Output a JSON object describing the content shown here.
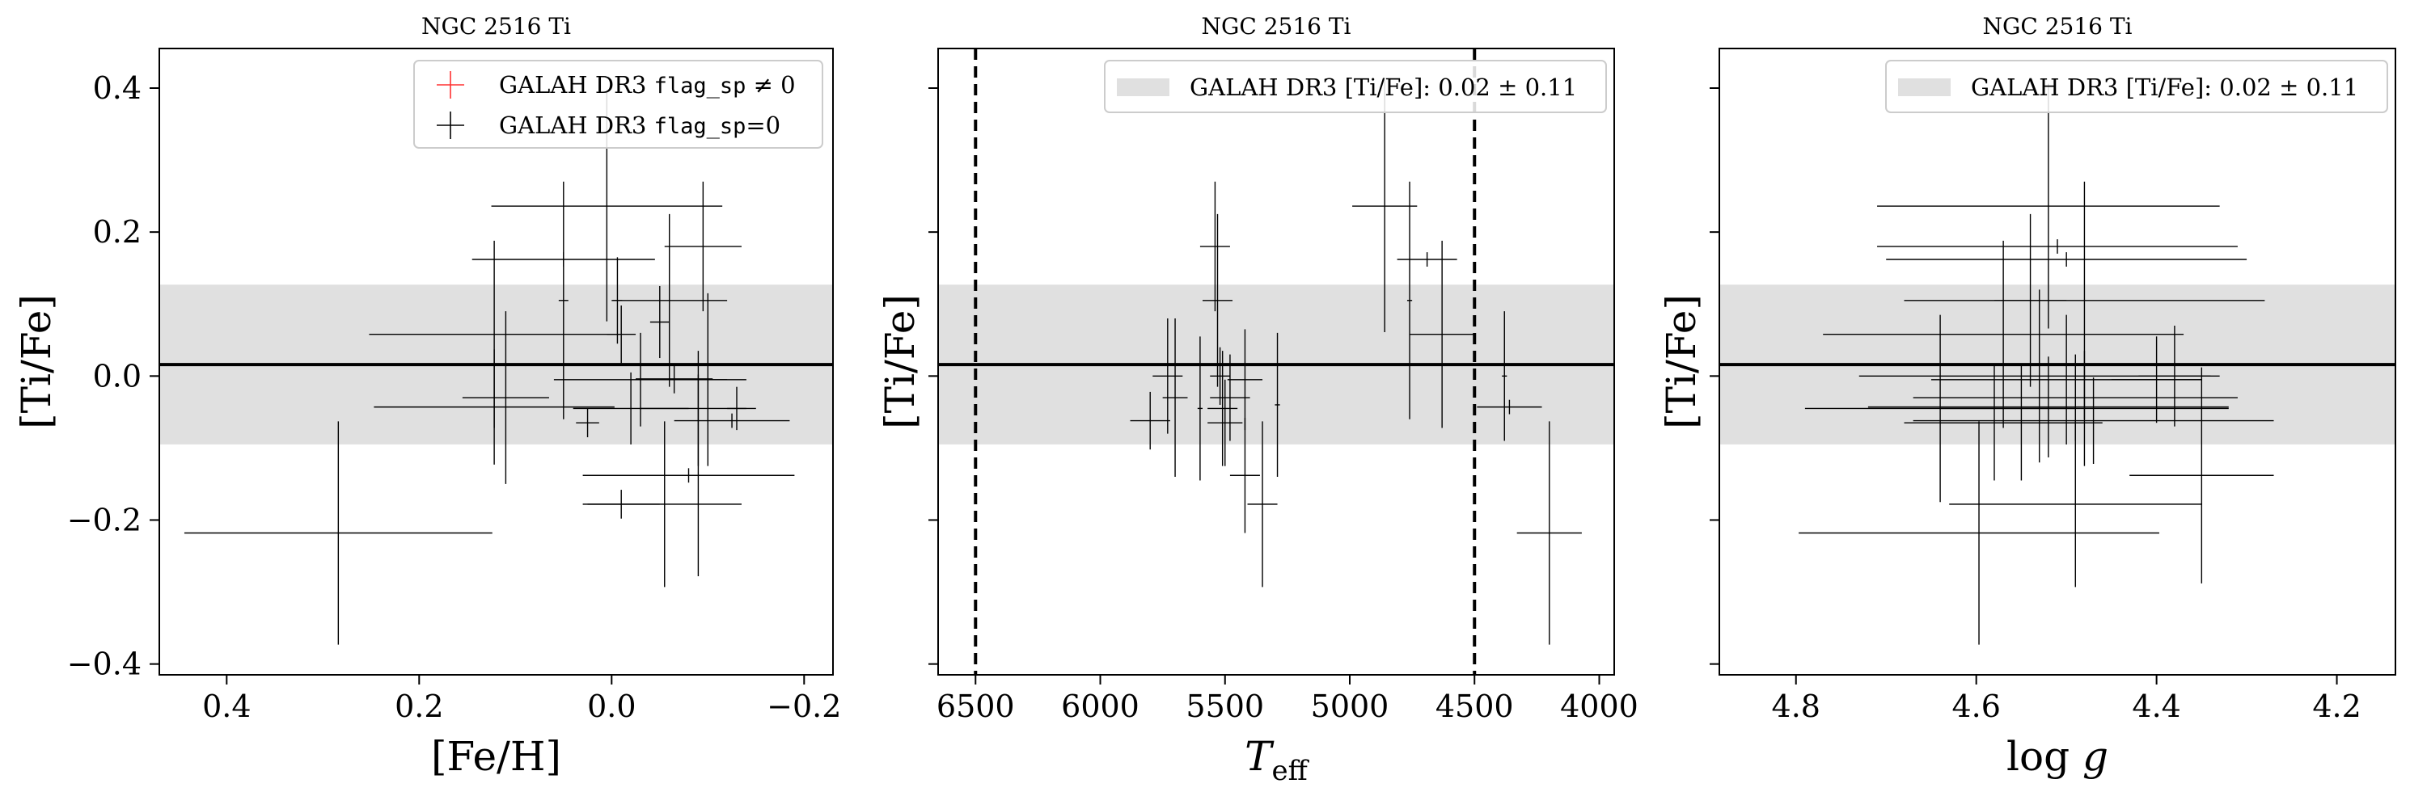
{
  "chart_data": [
    {
      "type": "scatter",
      "title": "NGC 2516 Ti",
      "xlabel": "[Fe/H]",
      "ylabel": "[Ti/Fe]",
      "xlim": [
        0.47,
        -0.23
      ],
      "ylim": [
        -0.415,
        0.455
      ],
      "x_ticks": [
        0.4,
        0.2,
        0.0,
        -0.2
      ],
      "x_tick_labels": [
        "0.4",
        "0.2",
        "0.0",
        "−0.2"
      ],
      "y_ticks": [
        -0.4,
        -0.2,
        0.0,
        0.2,
        0.4
      ],
      "y_tick_labels": [
        "−0.4",
        "−0.2",
        "0.0",
        "0.2",
        "0.4"
      ],
      "show_y_tick_labels": true,
      "band": [
        -0.095,
        0.127
      ],
      "reference_line": 0.016,
      "vertical_lines": [],
      "legend_position": "upper-right",
      "legend": [
        {
          "prefix": "GALAH DR3 ",
          "code": "flag_sp",
          "suffix": " ≠ 0",
          "marker": "plus",
          "color": "#ff3030"
        },
        {
          "prefix": "GALAH DR3 ",
          "code": "flag_sp",
          "suffix": "=0",
          "marker": "plus",
          "color": "#000000"
        }
      ],
      "points": [
        {
          "x": 0.284,
          "y": -0.218,
          "xerr": 0.16,
          "yerr": 0.155
        },
        {
          "x": 0.122,
          "y": 0.058,
          "xerr": 0.13,
          "yerr": 0.13
        },
        {
          "x": 0.122,
          "y": -0.043,
          "xerr": 0.125,
          "yerr": 0.08
        },
        {
          "x": 0.11,
          "y": -0.03,
          "xerr": 0.045,
          "yerr": 0.12
        },
        {
          "x": 0.05,
          "y": 0.105,
          "xerr": 0.005,
          "yerr": 0.165
        },
        {
          "x": 0.005,
          "y": 0.236,
          "xerr": 0.12,
          "yerr": 0.16
        },
        {
          "x": 0.05,
          "y": 0.162,
          "xerr": 0.095,
          "yerr": 0.01
        },
        {
          "x": 0.025,
          "y": -0.065,
          "xerr": 0.012,
          "yerr": 0.02
        },
        {
          "x": -0.006,
          "y": 0.105,
          "xerr": 0.005,
          "yerr": 0.06
        },
        {
          "x": -0.01,
          "y": 0.058,
          "xerr": 0.015,
          "yerr": 0.04
        },
        {
          "x": -0.03,
          "y": -0.005,
          "xerr": 0.09,
          "yerr": 0.065
        },
        {
          "x": -0.02,
          "y": -0.045,
          "xerr": 0.06,
          "yerr": 0.05
        },
        {
          "x": -0.05,
          "y": 0.075,
          "xerr": 0.01,
          "yerr": 0.05
        },
        {
          "x": -0.06,
          "y": 0.105,
          "xerr": 0.06,
          "yerr": 0.12
        },
        {
          "x": -0.065,
          "y": -0.004,
          "xerr": 0.04,
          "yerr": 0.02
        },
        {
          "x": -0.01,
          "y": -0.178,
          "xerr": 0.04,
          "yerr": 0.02
        },
        {
          "x": -0.055,
          "y": -0.178,
          "xerr": 0.08,
          "yerr": 0.115
        },
        {
          "x": -0.09,
          "y": -0.045,
          "xerr": 0.06,
          "yerr": 0.08
        },
        {
          "x": -0.09,
          "y": -0.138,
          "xerr": 0.08,
          "yerr": 0.14
        },
        {
          "x": -0.095,
          "y": 0.18,
          "xerr": 0.04,
          "yerr": 0.09
        },
        {
          "x": -0.1,
          "y": -0.005,
          "xerr": 0.04,
          "yerr": 0.12
        },
        {
          "x": -0.125,
          "y": -0.062,
          "xerr": 0.06,
          "yerr": 0.01
        },
        {
          "x": -0.13,
          "y": -0.045,
          "xerr": 0.01,
          "yerr": 0.03
        },
        {
          "x": -0.08,
          "y": -0.138,
          "xerr": 0.11,
          "yerr": 0.01
        }
      ]
    },
    {
      "type": "scatter",
      "title": "NGC 2516 Ti",
      "xlabel": "Teff",
      "ylabel": "[Ti/Fe]",
      "xlim": [
        6650,
        3940
      ],
      "ylim": [
        -0.415,
        0.455
      ],
      "x_ticks": [
        6500,
        6000,
        5500,
        5000,
        4500,
        4000
      ],
      "x_tick_labels": [
        "6500",
        "6000",
        "5500",
        "5000",
        "4500",
        "4000"
      ],
      "y_ticks": [
        -0.4,
        -0.2,
        0.0,
        0.2,
        0.4
      ],
      "y_tick_labels": [
        "",
        "",
        "",
        "",
        ""
      ],
      "show_y_tick_labels": false,
      "band": [
        -0.095,
        0.127
      ],
      "reference_line": 0.016,
      "vertical_lines": [
        6500,
        4500
      ],
      "legend_position": "upper-right",
      "legend": [
        {
          "prefix": "GALAH DR3 [Ti/Fe]: 0.02 ± 0.11",
          "code": "",
          "suffix": "",
          "marker": "band",
          "color": "#e0e0e0"
        }
      ],
      "points": [
        {
          "x": 5800,
          "y": -0.062,
          "xerr": 80,
          "yerr": 0.04
        },
        {
          "x": 5730,
          "y": 0.0,
          "xerr": 60,
          "yerr": 0.08
        },
        {
          "x": 5700,
          "y": -0.03,
          "xerr": 50,
          "yerr": 0.11
        },
        {
          "x": 5600,
          "y": -0.045,
          "xerr": 10,
          "yerr": 0.1
        },
        {
          "x": 5540,
          "y": 0.18,
          "xerr": 60,
          "yerr": 0.09
        },
        {
          "x": 5530,
          "y": 0.105,
          "xerr": 60,
          "yerr": 0.12
        },
        {
          "x": 5520,
          "y": 0.0,
          "xerr": 40,
          "yerr": 0.04
        },
        {
          "x": 5510,
          "y": -0.045,
          "xerr": 60,
          "yerr": 0.08
        },
        {
          "x": 5500,
          "y": -0.065,
          "xerr": 70,
          "yerr": 0.06
        },
        {
          "x": 5480,
          "y": -0.03,
          "xerr": 80,
          "yerr": 0.06
        },
        {
          "x": 5420,
          "y": -0.138,
          "xerr": 60,
          "yerr": 0.08
        },
        {
          "x": 5420,
          "y": -0.005,
          "xerr": 70,
          "yerr": 0.07
        },
        {
          "x": 5350,
          "y": -0.178,
          "xerr": 60,
          "yerr": 0.115
        },
        {
          "x": 5290,
          "y": -0.04,
          "xerr": 10,
          "yerr": 0.1
        },
        {
          "x": 4860,
          "y": 0.236,
          "xerr": 130,
          "yerr": 0.175
        },
        {
          "x": 4760,
          "y": 0.105,
          "xerr": 10,
          "yerr": 0.165
        },
        {
          "x": 4690,
          "y": 0.162,
          "xerr": 120,
          "yerr": 0.01
        },
        {
          "x": 4630,
          "y": 0.058,
          "xerr": 130,
          "yerr": 0.13
        },
        {
          "x": 4380,
          "y": 0.0,
          "xerr": 10,
          "yerr": 0.09
        },
        {
          "x": 4360,
          "y": -0.043,
          "xerr": 130,
          "yerr": 0.01
        },
        {
          "x": 4200,
          "y": -0.218,
          "xerr": 130,
          "yerr": 0.155
        }
      ]
    },
    {
      "type": "scatter",
      "title": "NGC 2516 Ti",
      "xlabel": "log g",
      "ylabel": "[Ti/Fe]",
      "xlim": [
        4.885,
        4.135
      ],
      "ylim": [
        -0.415,
        0.455
      ],
      "x_ticks": [
        4.8,
        4.6,
        4.4,
        4.2
      ],
      "x_tick_labels": [
        "4.8",
        "4.6",
        "4.4",
        "4.2"
      ],
      "y_ticks": [
        -0.4,
        -0.2,
        0.0,
        0.2,
        0.4
      ],
      "y_tick_labels": [
        "",
        "",
        "",
        "",
        ""
      ],
      "show_y_tick_labels": false,
      "band": [
        -0.095,
        0.127
      ],
      "reference_line": 0.016,
      "vertical_lines": [],
      "legend_position": "upper-right",
      "legend": [
        {
          "prefix": "GALAH DR3 [Ti/Fe]: 0.02 ± 0.11",
          "code": "",
          "suffix": "",
          "marker": "band",
          "color": "#e0e0e0"
        }
      ],
      "points": [
        {
          "x": 4.597,
          "y": -0.218,
          "xerr": 0.2,
          "yerr": 0.155
        },
        {
          "x": 4.52,
          "y": 0.236,
          "xerr": 0.19,
          "yerr": 0.17
        },
        {
          "x": 4.51,
          "y": 0.18,
          "xerr": 0.2,
          "yerr": 0.01
        },
        {
          "x": 4.5,
          "y": 0.162,
          "xerr": 0.2,
          "yerr": 0.01
        },
        {
          "x": 4.48,
          "y": 0.105,
          "xerr": 0.2,
          "yerr": 0.165
        },
        {
          "x": 4.57,
          "y": 0.058,
          "xerr": 0.2,
          "yerr": 0.13
        },
        {
          "x": 4.53,
          "y": 0.0,
          "xerr": 0.2,
          "yerr": 0.12
        },
        {
          "x": 4.5,
          "y": -0.005,
          "xerr": 0.15,
          "yerr": 0.09
        },
        {
          "x": 4.49,
          "y": -0.03,
          "xerr": 0.18,
          "yerr": 0.06
        },
        {
          "x": 4.52,
          "y": -0.043,
          "xerr": 0.2,
          "yerr": 0.07
        },
        {
          "x": 4.48,
          "y": -0.045,
          "xerr": 0.16,
          "yerr": 0.08
        },
        {
          "x": 4.47,
          "y": -0.062,
          "xerr": 0.2,
          "yerr": 0.06
        },
        {
          "x": 4.64,
          "y": -0.045,
          "xerr": 0.15,
          "yerr": 0.13
        },
        {
          "x": 4.58,
          "y": -0.065,
          "xerr": 0.1,
          "yerr": 0.08
        },
        {
          "x": 4.55,
          "y": -0.065,
          "xerr": 0.09,
          "yerr": 0.08
        },
        {
          "x": 4.49,
          "y": -0.178,
          "xerr": 0.14,
          "yerr": 0.115
        },
        {
          "x": 4.4,
          "y": -0.005,
          "xerr": 0.05,
          "yerr": 0.06
        },
        {
          "x": 4.38,
          "y": 0.0,
          "xerr": 0.04,
          "yerr": 0.07
        },
        {
          "x": 4.35,
          "y": -0.138,
          "xerr": 0.08,
          "yerr": 0.15
        },
        {
          "x": 4.54,
          "y": 0.105,
          "xerr": 0.04,
          "yerr": 0.12
        }
      ]
    }
  ]
}
